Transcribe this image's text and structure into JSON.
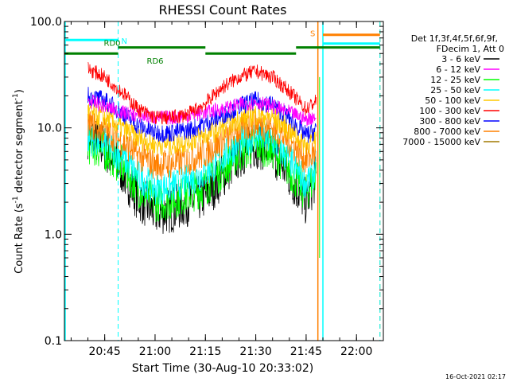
{
  "chart_data": {
    "type": "line",
    "title": "RHESSI Count Rates",
    "xlabel": "Start Time (30-Aug-10 20:33:02)",
    "ylabel_parts": [
      "Count Rate (s",
      "-1",
      " detector segment",
      "-1",
      ")"
    ],
    "y_scale": "log",
    "ylim": [
      0.1,
      100.0
    ],
    "xlim_minutes": [
      "20:33",
      "22:08"
    ],
    "x_ticks": [
      "20:45",
      "21:00",
      "21:15",
      "21:30",
      "21:45",
      "22:00"
    ],
    "y_ticks": [
      "0.1",
      "1.0",
      "10.0",
      "100.0"
    ],
    "legend": {
      "header_lines": [
        "Det 1f,3f,4f,5f,6f,9f,",
        "FDecim 1, Att 0"
      ],
      "placement": "right"
    },
    "series": [
      {
        "name": "3 - 6 keV",
        "color": "#000000",
        "x": [
          "20:40",
          "20:45",
          "20:50",
          "20:55",
          "21:00",
          "21:05",
          "21:10",
          "21:15",
          "21:20",
          "21:25",
          "21:30",
          "21:35",
          "21:40",
          "21:45",
          "21:48"
        ],
        "values": [
          8.5,
          6.5,
          4.0,
          2.2,
          1.6,
          1.7,
          2.0,
          2.3,
          3.5,
          5.5,
          7.0,
          6.0,
          3.5,
          2.0,
          3.5
        ]
      },
      {
        "name": "6 - 12 keV",
        "color": "#ff00ff",
        "x": [
          "20:40",
          "20:45",
          "20:50",
          "20:55",
          "21:00",
          "21:05",
          "21:10",
          "21:15",
          "21:20",
          "21:25",
          "21:30",
          "21:35",
          "21:40",
          "21:45",
          "21:48"
        ],
        "values": [
          18,
          16,
          14,
          13,
          12.5,
          12.5,
          13,
          14,
          15,
          16.5,
          17.5,
          16,
          14,
          12,
          13
        ]
      },
      {
        "name": "12 - 25 keV",
        "color": "#00ff00",
        "x": [
          "20:40",
          "20:45",
          "20:50",
          "20:55",
          "21:00",
          "21:05",
          "21:10",
          "21:15",
          "21:20",
          "21:25",
          "21:30",
          "21:35",
          "21:40",
          "21:45",
          "21:48"
        ],
        "values": [
          7.0,
          6.0,
          4.5,
          2.7,
          2.0,
          2.1,
          2.4,
          2.8,
          4.0,
          5.8,
          7.0,
          6.2,
          4.0,
          2.4,
          3.8
        ]
      },
      {
        "name": "25 - 50 keV",
        "color": "#00ffff",
        "x": [
          "20:40",
          "20:45",
          "20:50",
          "20:55",
          "21:00",
          "21:05",
          "21:10",
          "21:15",
          "21:20",
          "21:25",
          "21:30",
          "21:35",
          "21:40",
          "21:45",
          "21:48"
        ],
        "values": [
          8.0,
          7.0,
          5.5,
          3.5,
          2.7,
          2.8,
          3.2,
          3.8,
          5.2,
          7.2,
          8.5,
          7.5,
          5.0,
          3.0,
          4.2
        ]
      },
      {
        "name": "50 - 100 keV",
        "color": "#ffc800",
        "x": [
          "20:40",
          "20:45",
          "20:50",
          "20:55",
          "21:00",
          "21:05",
          "21:10",
          "21:15",
          "21:20",
          "21:25",
          "21:30",
          "21:35",
          "21:40",
          "21:45",
          "21:48"
        ],
        "values": [
          14,
          12.5,
          10,
          8.0,
          7.0,
          7.0,
          7.5,
          8.5,
          10,
          12,
          13.5,
          12.5,
          9.5,
          7.0,
          8.0
        ]
      },
      {
        "name": "100 - 300 keV",
        "color": "#ff0000",
        "x": [
          "20:40",
          "20:45",
          "20:50",
          "20:55",
          "21:00",
          "21:05",
          "21:10",
          "21:15",
          "21:20",
          "21:25",
          "21:30",
          "21:35",
          "21:40",
          "21:45",
          "21:48"
        ],
        "values": [
          36,
          30,
          22,
          15,
          12.5,
          12.5,
          13.5,
          17,
          24,
          30,
          34,
          30,
          22,
          15,
          18
        ]
      },
      {
        "name": "300 - 800 keV",
        "color": "#0000ff",
        "x": [
          "20:40",
          "20:45",
          "20:50",
          "20:55",
          "21:00",
          "21:05",
          "21:10",
          "21:15",
          "21:20",
          "21:25",
          "21:30",
          "21:35",
          "21:40",
          "21:45",
          "21:48"
        ],
        "values": [
          20,
          18,
          14,
          10.5,
          9.0,
          9.0,
          9.5,
          11,
          13,
          16,
          18,
          16.5,
          12.5,
          8.5,
          9.5
        ]
      },
      {
        "name": "800 - 7000 keV",
        "color": "#ff8000",
        "x": [
          "20:40",
          "20:45",
          "20:50",
          "20:55",
          "21:00",
          "21:05",
          "21:10",
          "21:15",
          "21:20",
          "21:25",
          "21:30",
          "21:35",
          "21:40",
          "21:45",
          "21:48"
        ],
        "values": [
          11,
          9.5,
          7.5,
          5.5,
          4.5,
          4.6,
          5.0,
          5.8,
          7.5,
          9.5,
          11,
          10,
          7.5,
          5.0,
          6.0
        ]
      },
      {
        "name": "7000 - 15000 keV",
        "color": "#a07800",
        "x": [],
        "values": []
      }
    ],
    "annotations": [
      {
        "label": "N",
        "color": "#00ffff",
        "level": 67,
        "from": "20:33",
        "to": "20:49"
      },
      {
        "label": "RD0",
        "color": "#008000",
        "level": 57,
        "from": "20:49",
        "to": "21:15"
      },
      {
        "label": "RD6",
        "color": "#008000",
        "level": 50,
        "from": "20:33",
        "to": "21:42"
      },
      {
        "label": "S",
        "color": "#ff8000",
        "level": 75,
        "from": "21:50",
        "to": "22:07"
      }
    ],
    "vertical_markers": [
      {
        "at": "20:49",
        "color": "#00ffff",
        "style": "dashed"
      },
      {
        "at": "21:48.5",
        "color": "#ff8000",
        "style": "solid"
      },
      {
        "at": "21:50",
        "color": "#00ffff",
        "style": "solid"
      },
      {
        "at": "22:07",
        "color": "#ff8000",
        "style": "dashed"
      },
      {
        "at": "22:07",
        "color": "#00ffff",
        "style": "dashed"
      }
    ],
    "timestamp": "16-Oct-2021 02:17"
  }
}
